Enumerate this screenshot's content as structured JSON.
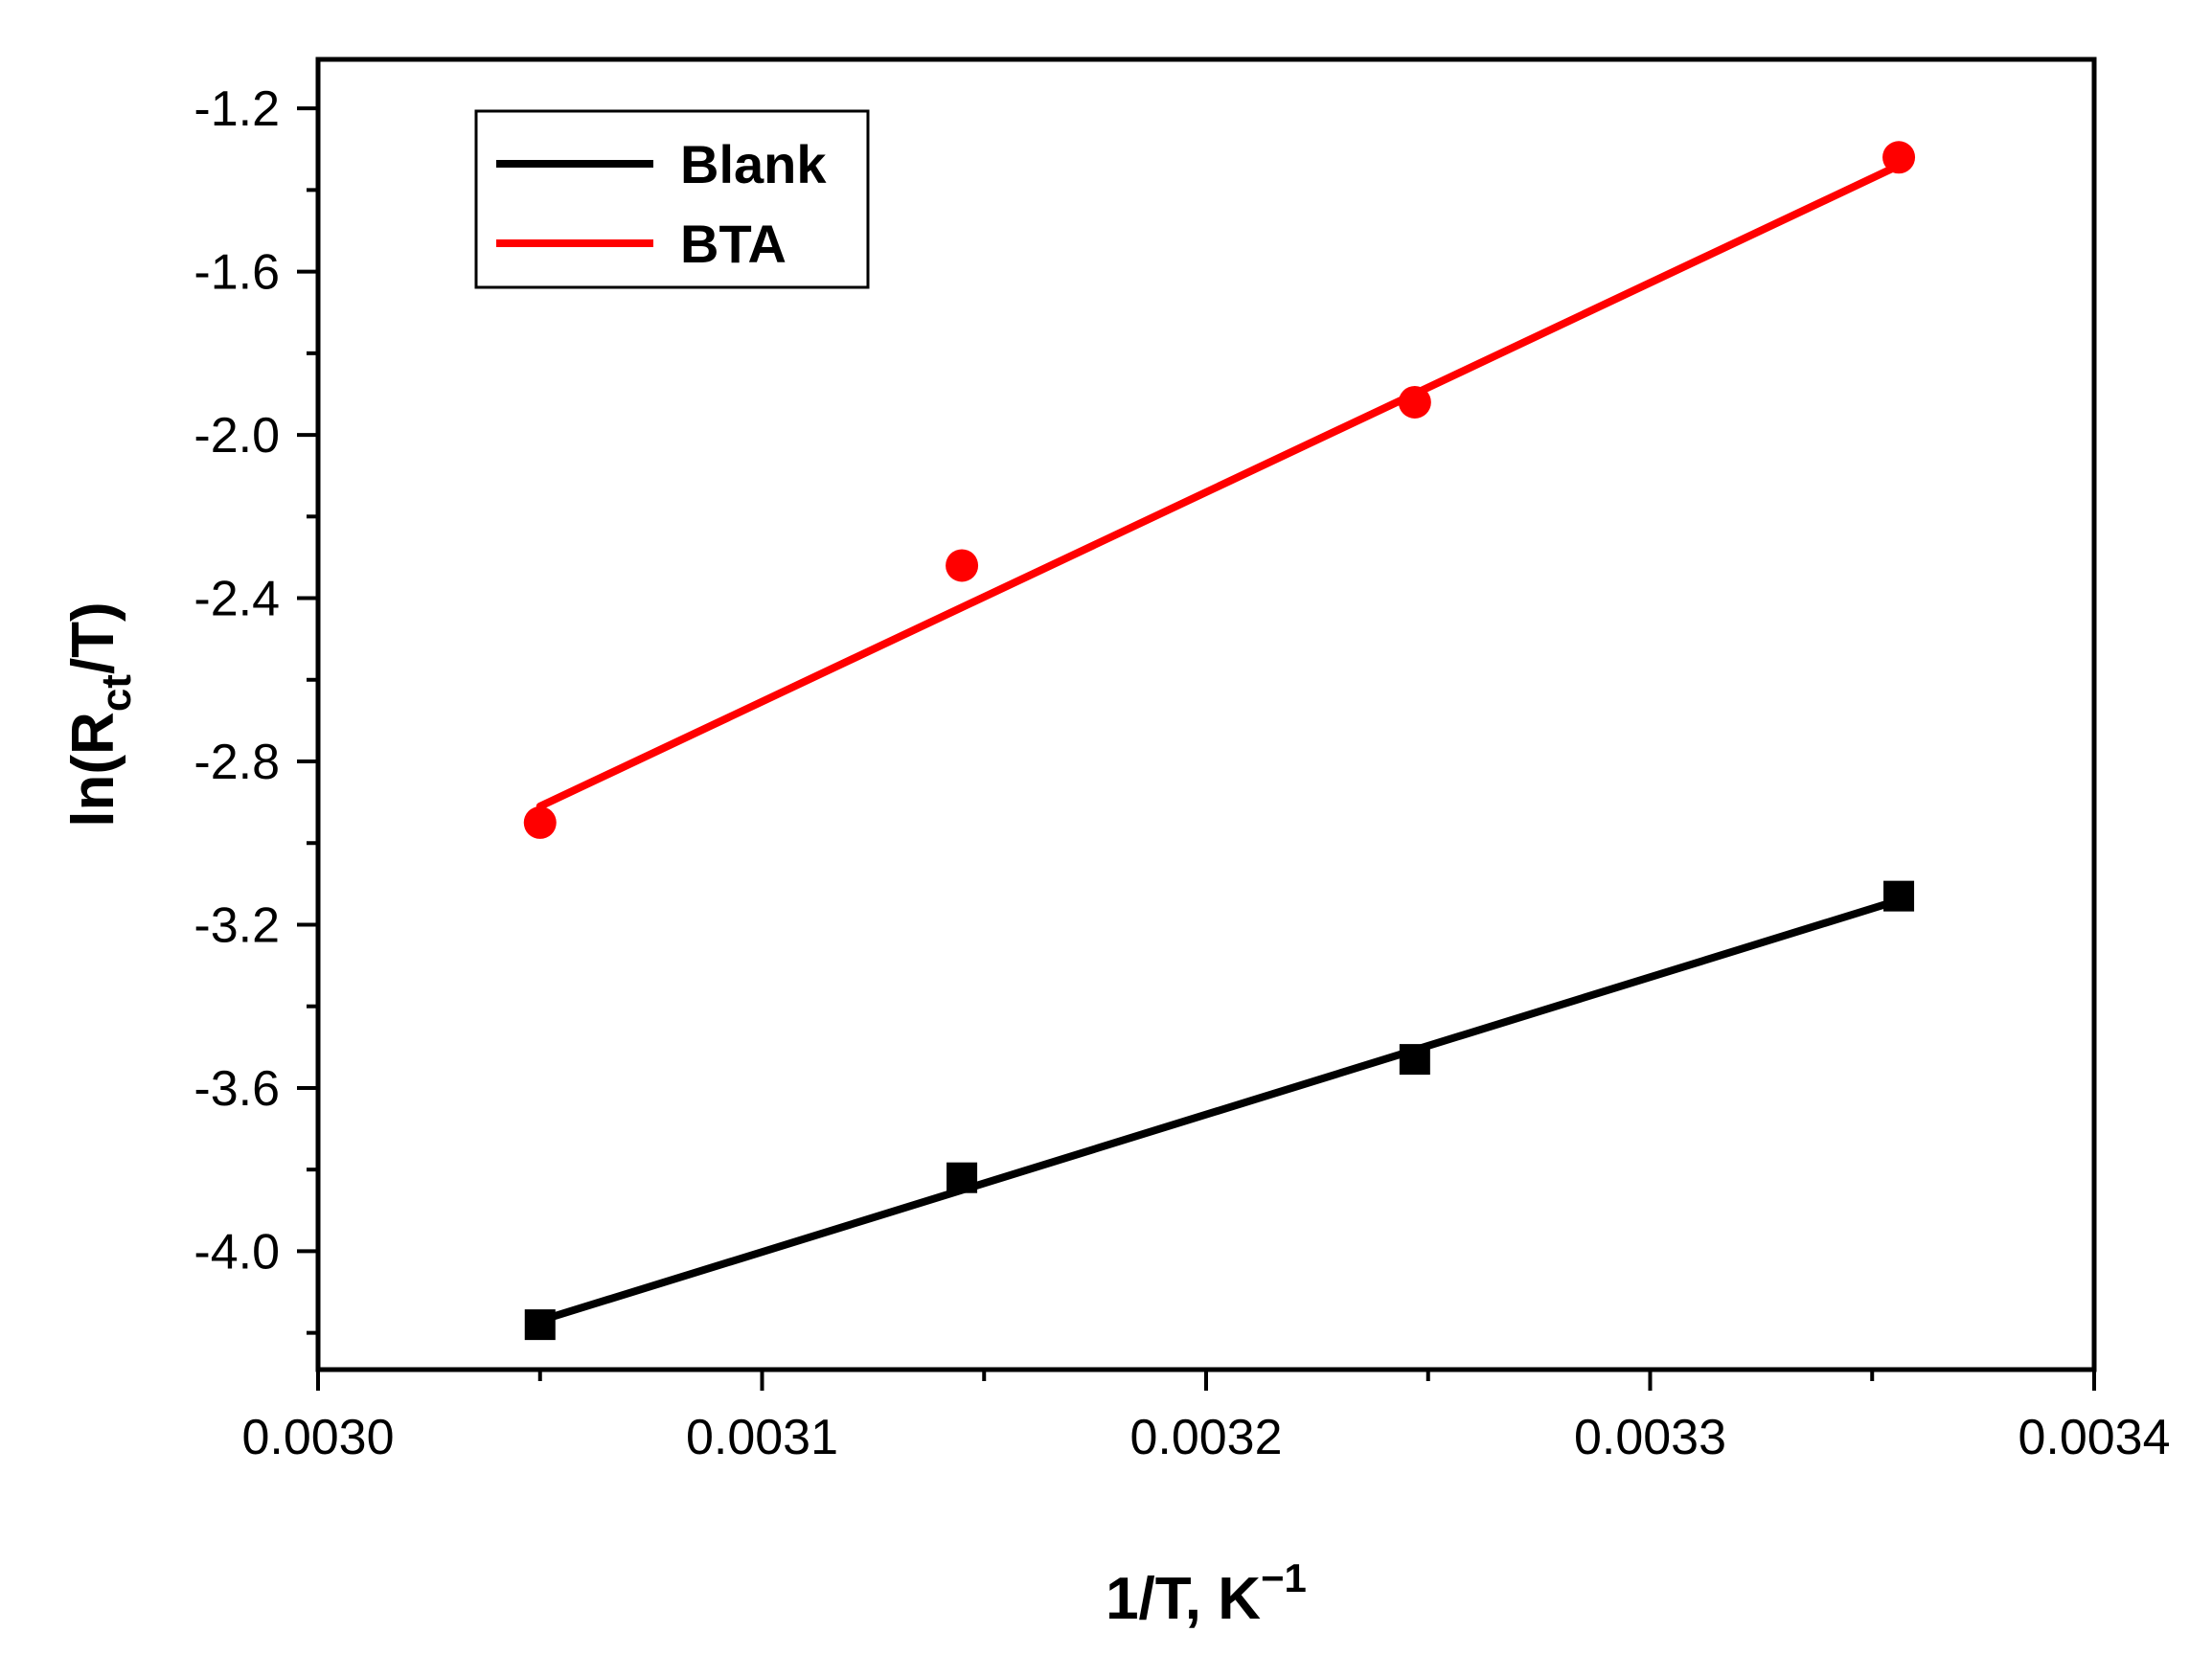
{
  "chart_data": {
    "type": "scatter",
    "xlabel": {
      "base": "1/T, K",
      "sup": "−1"
    },
    "ylabel": {
      "pre": "ln(R",
      "sub": "ct",
      "post": "/T)"
    },
    "xlim": [
      0.003,
      0.0034
    ],
    "ylim": [
      -4.29,
      -1.08
    ],
    "x_ticks": [
      0.003,
      0.0031,
      0.0032,
      0.0033,
      0.0034
    ],
    "x_tick_labels": [
      "0.0030",
      "0.0031",
      "0.0032",
      "0.0033",
      "0.0034"
    ],
    "y_ticks": [
      -1.2,
      -1.6,
      -2.0,
      -2.4,
      -2.8,
      -3.2,
      -3.6,
      -4.0
    ],
    "y_tick_labels": [
      "-1.2",
      "-1.6",
      "-2.0",
      "-2.4",
      "-2.8",
      "-3.2",
      "-3.6",
      "-4.0"
    ],
    "grid": false,
    "legend_position": "top-left",
    "series": [
      {
        "name": "Blank",
        "marker": "square",
        "color": "#000000",
        "x": [
          0.00305,
          0.003145,
          0.003247,
          0.003356
        ],
        "y": [
          -4.18,
          -3.82,
          -3.53,
          -3.13
        ],
        "fit": {
          "x": [
            0.00305,
            0.003356
          ],
          "y": [
            -4.17,
            -3.14
          ]
        }
      },
      {
        "name": "BTA",
        "marker": "circle",
        "color": "#ff0000",
        "x": [
          0.00305,
          0.003145,
          0.003247,
          0.003356
        ],
        "y": [
          -2.95,
          -2.32,
          -1.92,
          -1.32
        ],
        "fit": {
          "x": [
            0.00305,
            0.003356
          ],
          "y": [
            -2.91,
            -1.34
          ]
        }
      }
    ]
  }
}
